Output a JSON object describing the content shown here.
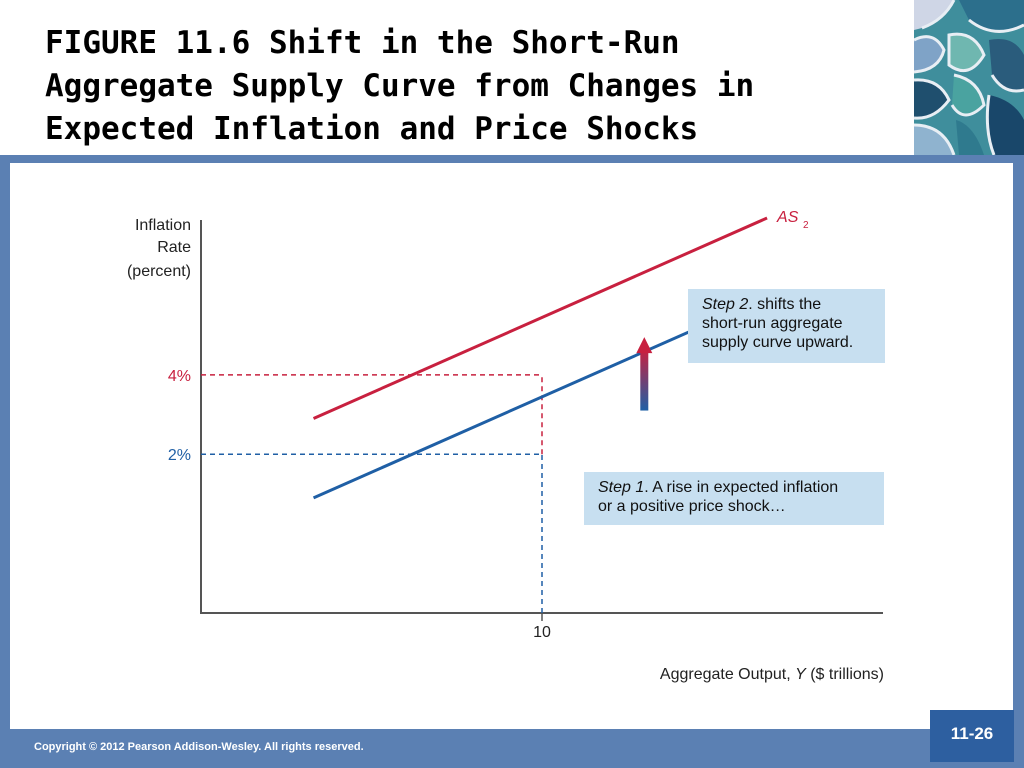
{
  "slide": {
    "title_line1": "FIGURE 11.6  Shift in the Short-Run",
    "title_line2": "Aggregate Supply Curve from Changes in",
    "title_line3": "Expected Inflation and Price Shocks",
    "copyright": "Copyright © 2012 Pearson Addison-Wesley. All rights reserved.",
    "page_number": "11-26"
  },
  "callouts": {
    "step1_lead": "Step 1",
    "step1_text1": ". A rise in expected inflation",
    "step1_text2": "or a positive price shock…",
    "step2_lead": "Step 2",
    "step2_text1": ". shifts the",
    "step2_text2": "short-run aggregate",
    "step2_text3": "supply curve upward."
  },
  "colors": {
    "as1": "#1f5fa5",
    "as2": "#c8203f",
    "frame": "#5b80b3",
    "callout_bg": "#c7dff0"
  },
  "chart_data": {
    "type": "line",
    "ylabel_lines": [
      "Inflation",
      "Rate",
      "(percent)"
    ],
    "xlabel_pre": "Aggregate Output, ",
    "xlabel_var": "Y",
    "xlabel_post": " ($ trillions)",
    "x_ticks": [
      {
        "value": 10,
        "label": "10"
      }
    ],
    "y_ticks": [
      {
        "value": 2,
        "label": "2%"
      },
      {
        "value": 4,
        "label": "4%"
      }
    ],
    "xlim": [
      0,
      20
    ],
    "ylim": [
      -2,
      7.9
    ],
    "series": [
      {
        "name": "AS",
        "subscript": "1",
        "color": "#1f5fa5",
        "x": [
          3.3,
          16.6
        ],
        "y": [
          0.9,
          5.95
        ]
      },
      {
        "name": "AS",
        "subscript": "2",
        "color": "#c8203f",
        "x": [
          3.3,
          16.6
        ],
        "y": [
          2.9,
          7.95
        ]
      }
    ],
    "reference_point": {
      "x": 10,
      "y_levels": [
        2,
        4
      ]
    },
    "shift_arrow": {
      "x": 13,
      "from_y": 3.1,
      "to_y": 4.85
    },
    "grid": false
  }
}
